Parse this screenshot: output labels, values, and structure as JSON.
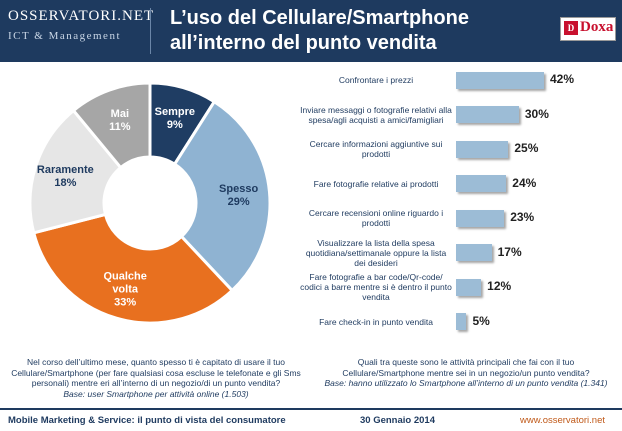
{
  "header": {
    "logo_main": "OSSERVATORI.NET",
    "logo_sub": "ICT & Management",
    "title": "L’uso del Cellulare/Smartphone all’interno del punto vendita",
    "doxa_logo": "Doxa"
  },
  "chart_data": [
    {
      "type": "pie",
      "slices": [
        {
          "name": "Sempre",
          "value": 9,
          "label": "9%",
          "color": "#1f3d63",
          "text_color": "#ffffff"
        },
        {
          "name": "Spesso",
          "value": 29,
          "label": "29%",
          "color": "#8fb3d2",
          "text_color": "#1e3a5f"
        },
        {
          "name": "Qualche volta",
          "value": 33,
          "label": "33%",
          "color": "#e8701f",
          "text_color": "#ffffff"
        },
        {
          "name": "Raramente",
          "value": 18,
          "label": "18%",
          "color": "#e6e6e6",
          "text_color": "#1e3a5f"
        },
        {
          "name": "Mai",
          "value": 11,
          "label": "11%",
          "color": "#a6a6a6",
          "text_color": "#ffffff"
        }
      ]
    },
    {
      "type": "bar",
      "orientation": "horizontal",
      "xlim": [
        0,
        42
      ],
      "bar_color": "#9cbcd6",
      "categories": [
        "Confrontare i prezzi",
        "Inviare messaggi o fotografie relativi alla spesa/agli acquisti a amici/famigliari",
        "Cercare informazioni aggiuntive sui prodotti",
        "Fare fotografie relative ai prodotti",
        "Cercare recensioni online riguardo i prodotti",
        "Visualizzare la lista della spesa quotidiana/settimanale oppure la lista dei desideri",
        "Fare fotografie a bar code/Qr-code/ codici a barre mentre si è dentro il punto vendita",
        "Fare check-in in punto vendita"
      ],
      "values": [
        42,
        30,
        25,
        24,
        23,
        17,
        12,
        5
      ],
      "value_labels": [
        "42%",
        "30%",
        "25%",
        "24%",
        "23%",
        "17%",
        "12%",
        "5%"
      ]
    }
  ],
  "questions": {
    "left_text": "Nel corso dell’ultimo mese, quanto spesso ti è capitato di usare il tuo Cellulare/Smartphone (per fare qualsiasi cosa escluse le telefonate e gli Sms personali) mentre eri all’interno di un negozio/di un punto vendita?",
    "left_base": "Base: user Smartphone per attività online (1.503)",
    "right_text": "Quali tra queste sono le attività principali che fai con il tuo Cellulare/Smartphone mentre sei in un negozio/un punto vendita?",
    "right_base": "Base: hanno utilizzato lo Smartphone all’interno di un punto vendita (1.341)"
  },
  "footer": {
    "left": "Mobile Marketing & Service: il punto di vista del consumatore",
    "date": "30 Gennaio 2014",
    "url": "www.osservatori.net"
  }
}
